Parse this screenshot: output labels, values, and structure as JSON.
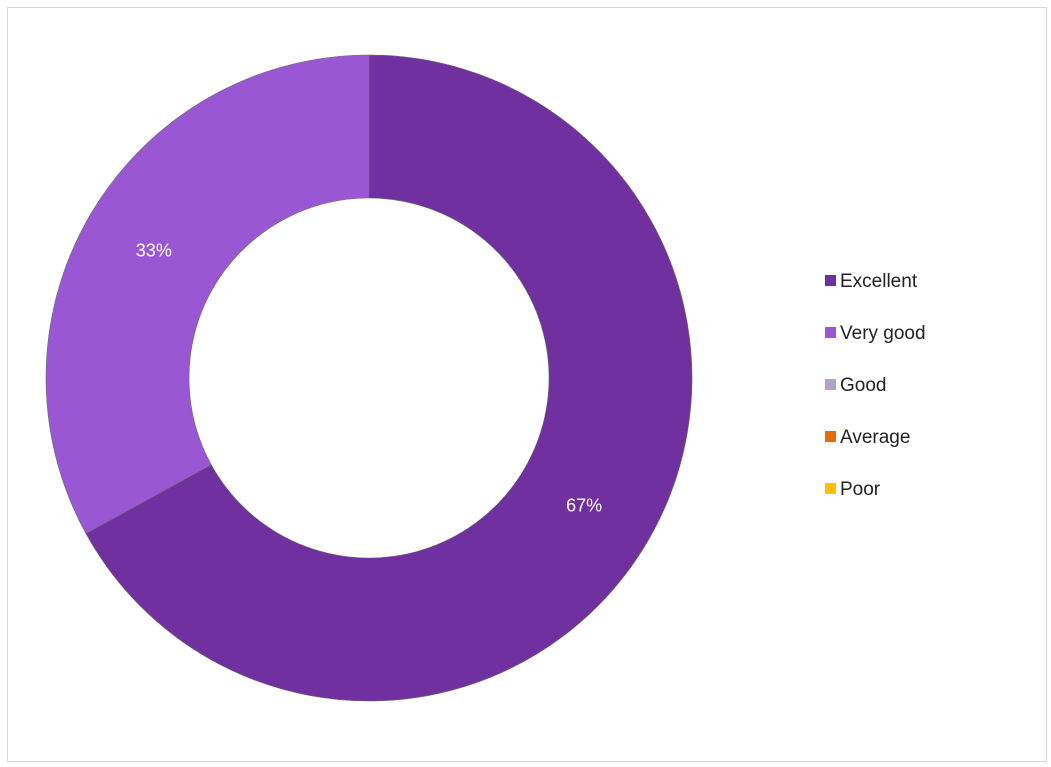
{
  "chart_data": {
    "type": "pie",
    "variant": "doughnut",
    "categories": [
      "Excellent",
      "Very good",
      "Good",
      "Average",
      "Poor"
    ],
    "values": [
      67,
      33,
      0,
      0,
      0
    ],
    "unit": "%",
    "slice_labels": [
      "67%",
      "33%",
      "",
      "",
      ""
    ],
    "colors": [
      "#7030a0",
      "#9a57d3",
      "#b3a2c7",
      "#e46c0a",
      "#ffc000"
    ],
    "legend_position": "right",
    "title": ""
  }
}
